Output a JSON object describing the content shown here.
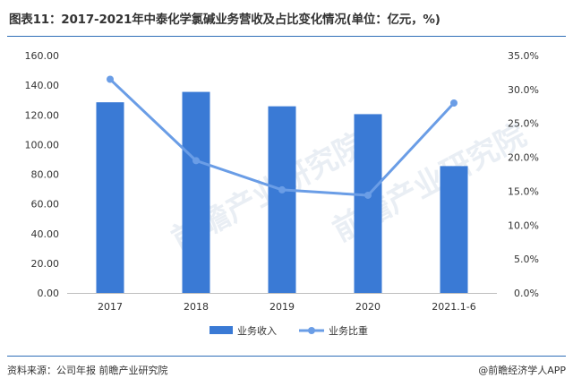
{
  "title": "图表11：2017-2021年中泰化学氯碱业务营收及占比变化情况(单位：亿元，%)",
  "source": "资料来源：公司年报 前瞻产业研究院",
  "credit": "@前瞻经济学人APP",
  "watermark": "前瞻产业研究院",
  "colors": {
    "bar": "#3a7ad5",
    "line": "#6a9de6",
    "accent": "#2f6fb8"
  },
  "chart_data": {
    "type": "bar",
    "categories": [
      "2017",
      "2018",
      "2019",
      "2020",
      "2021.1-6"
    ],
    "series": [
      {
        "name": "业务收入",
        "type": "bar",
        "axis": "left",
        "values": [
          128.5,
          135.5,
          125.8,
          120.5,
          85.5
        ]
      },
      {
        "name": "业务比重",
        "type": "line",
        "axis": "right",
        "values": [
          31.5,
          19.5,
          15.2,
          14.4,
          28.0
        ]
      }
    ],
    "y_left": {
      "min": 0,
      "max": 160,
      "ticks": [
        "0.00",
        "20.00",
        "40.00",
        "60.00",
        "80.00",
        "100.00",
        "120.00",
        "140.00",
        "160.00"
      ]
    },
    "y_right": {
      "min": 0,
      "max": 35,
      "ticks": [
        "0.0%",
        "5.0%",
        "10.0%",
        "15.0%",
        "20.0%",
        "25.0%",
        "30.0%",
        "35.0%"
      ]
    },
    "legend": "bottom",
    "grid": false
  }
}
